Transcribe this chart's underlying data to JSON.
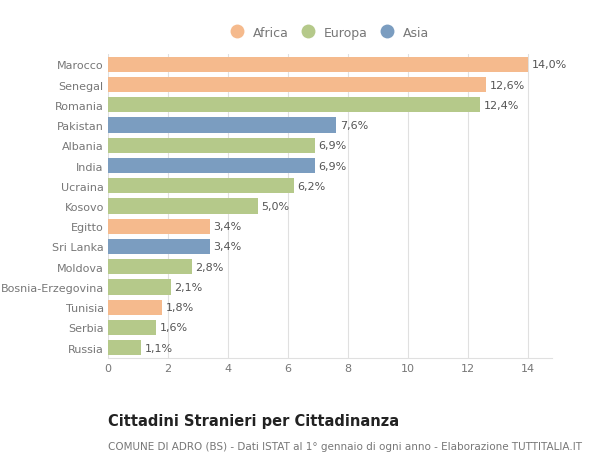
{
  "categories": [
    "Russia",
    "Serbia",
    "Tunisia",
    "Bosnia-Erzegovina",
    "Moldova",
    "Sri Lanka",
    "Egitto",
    "Kosovo",
    "Ucraina",
    "India",
    "Albania",
    "Pakistan",
    "Romania",
    "Senegal",
    "Marocco"
  ],
  "values": [
    1.1,
    1.6,
    1.8,
    2.1,
    2.8,
    3.4,
    3.4,
    5.0,
    6.2,
    6.9,
    6.9,
    7.6,
    12.4,
    12.6,
    14.0
  ],
  "labels": [
    "1,1%",
    "1,6%",
    "1,8%",
    "2,1%",
    "2,8%",
    "3,4%",
    "3,4%",
    "5,0%",
    "6,2%",
    "6,9%",
    "6,9%",
    "7,6%",
    "12,4%",
    "12,6%",
    "14,0%"
  ],
  "continents": [
    "Europa",
    "Europa",
    "Africa",
    "Europa",
    "Europa",
    "Asia",
    "Africa",
    "Europa",
    "Europa",
    "Asia",
    "Europa",
    "Asia",
    "Europa",
    "Africa",
    "Africa"
  ],
  "colors": {
    "Africa": "#F5BA8D",
    "Europa": "#B5C98A",
    "Asia": "#7B9DC0"
  },
  "legend_labels": [
    "Africa",
    "Europa",
    "Asia"
  ],
  "legend_colors": [
    "#F5BA8D",
    "#B5C98A",
    "#7B9DC0"
  ],
  "title": "Cittadini Stranieri per Cittadinanza",
  "subtitle": "COMUNE DI ADRO (BS) - Dati ISTAT al 1° gennaio di ogni anno - Elaborazione TUTTITALIA.IT",
  "xlim_max": 14,
  "xticks": [
    0,
    2,
    4,
    6,
    8,
    10,
    12,
    14
  ],
  "background_color": "#ffffff",
  "bar_height": 0.75,
  "grid_color": "#e0e0e0",
  "label_fontsize": 8.0,
  "tick_fontsize": 8.0,
  "title_fontsize": 10.5,
  "subtitle_fontsize": 7.5,
  "ytick_color": "#777777",
  "xtick_color": "#777777",
  "label_color": "#555555"
}
